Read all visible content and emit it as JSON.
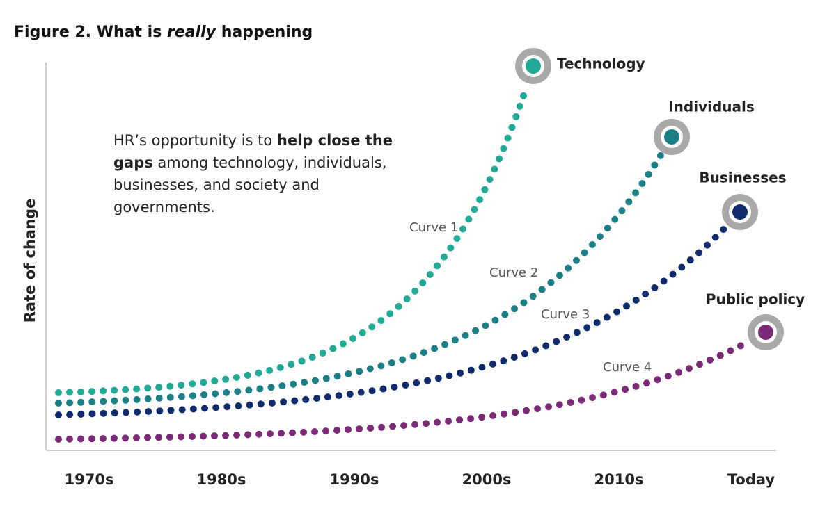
{
  "title": {
    "before": "Figure 2. What is ",
    "emphasis": "really",
    "after": " happening"
  },
  "y_axis_label": "Rate of change",
  "x_labels": [
    "1970s",
    "1980s",
    "1990s",
    "2000s",
    "2010s",
    "Today"
  ],
  "annotation": {
    "before": "HR’s opportunity is to ",
    "bold": "help close the gaps",
    "after": " among technology, individuals, businesses, and society and governments."
  },
  "curves": [
    {
      "label": "Curve 1",
      "name": "Technology",
      "color": "#1fa996"
    },
    {
      "label": "Curve 2",
      "name": "Individuals",
      "color": "#1a7f86"
    },
    {
      "label": "Curve 3",
      "name": "Businesses",
      "color": "#0f2b6b"
    },
    {
      "label": "Curve 4",
      "name": "Public policy",
      "color": "#7b2a78"
    }
  ]
}
